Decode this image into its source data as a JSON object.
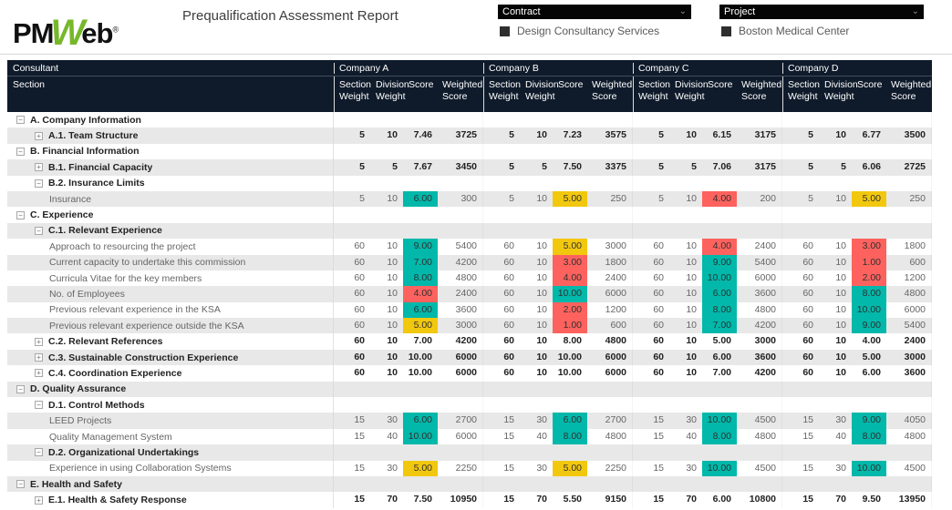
{
  "page": {
    "title_report": "Prequalification Assessment Report"
  },
  "logo": {
    "part1": "PM",
    "part2": "W",
    "part3": "eb",
    "registered": "®"
  },
  "slicers": {
    "contract": {
      "label": "Contract",
      "selected_item": "Design Consultancy Services",
      "chevron": "⌄"
    },
    "project": {
      "label": "Project",
      "selected_item": "Boston Medical Center",
      "chevron": "⌄"
    }
  },
  "table": {
    "corner_row1": "Consultant",
    "corner_row2": "Section",
    "companies": [
      "Company A",
      "Company B",
      "Company C",
      "Company D"
    ],
    "sub_columns": [
      "Section Weight",
      "Division Weight",
      "Score",
      "Weighted Score"
    ],
    "rows": [
      {
        "label": "A. Company Information",
        "level": 1,
        "expander": "minus",
        "bold": true,
        "cells": null
      },
      {
        "label": "A.1. Team Structure",
        "level": 2,
        "expander": "plus",
        "bold": true,
        "cells": [
          {
            "sw": "5",
            "dw": "10",
            "score": "7.46",
            "ws": "3725",
            "color": null
          },
          {
            "sw": "5",
            "dw": "10",
            "score": "7.23",
            "ws": "3575",
            "color": null
          },
          {
            "sw": "5",
            "dw": "10",
            "score": "6.15",
            "ws": "3175",
            "color": null
          },
          {
            "sw": "5",
            "dw": "10",
            "score": "6.77",
            "ws": "3500",
            "color": null
          }
        ]
      },
      {
        "label": "B. Financial Information",
        "level": 1,
        "expander": "minus",
        "bold": true,
        "cells": null
      },
      {
        "label": "B.1. Financial Capacity",
        "level": 2,
        "expander": "plus",
        "bold": true,
        "cells": [
          {
            "sw": "5",
            "dw": "5",
            "score": "7.67",
            "ws": "3450",
            "color": null
          },
          {
            "sw": "5",
            "dw": "5",
            "score": "7.50",
            "ws": "3375",
            "color": null
          },
          {
            "sw": "5",
            "dw": "5",
            "score": "7.06",
            "ws": "3175",
            "color": null
          },
          {
            "sw": "5",
            "dw": "5",
            "score": "6.06",
            "ws": "2725",
            "color": null
          }
        ]
      },
      {
        "label": "B.2. Insurance Limits",
        "level": 2,
        "expander": "minus",
        "bold": true,
        "cells": null
      },
      {
        "label": "Insurance",
        "level": 3,
        "expander": null,
        "bold": false,
        "cells": [
          {
            "sw": "5",
            "dw": "10",
            "score": "6.00",
            "ws": "300",
            "color": "teal"
          },
          {
            "sw": "5",
            "dw": "10",
            "score": "5.00",
            "ws": "250",
            "color": "yellow"
          },
          {
            "sw": "5",
            "dw": "10",
            "score": "4.00",
            "ws": "200",
            "color": "red"
          },
          {
            "sw": "5",
            "dw": "10",
            "score": "5.00",
            "ws": "250",
            "color": "yellow"
          }
        ]
      },
      {
        "label": "C. Experience",
        "level": 1,
        "expander": "minus",
        "bold": true,
        "cells": null
      },
      {
        "label": "C.1. Relevant Experience",
        "level": 2,
        "expander": "minus",
        "bold": true,
        "cells": null
      },
      {
        "label": "Approach to resourcing the project",
        "level": 3,
        "expander": null,
        "bold": false,
        "cells": [
          {
            "sw": "60",
            "dw": "10",
            "score": "9.00",
            "ws": "5400",
            "color": "teal"
          },
          {
            "sw": "60",
            "dw": "10",
            "score": "5.00",
            "ws": "3000",
            "color": "yellow"
          },
          {
            "sw": "60",
            "dw": "10",
            "score": "4.00",
            "ws": "2400",
            "color": "red"
          },
          {
            "sw": "60",
            "dw": "10",
            "score": "3.00",
            "ws": "1800",
            "color": "red"
          }
        ]
      },
      {
        "label": "Current capacity to undertake this commission",
        "level": 3,
        "expander": null,
        "bold": false,
        "cells": [
          {
            "sw": "60",
            "dw": "10",
            "score": "7.00",
            "ws": "4200",
            "color": "teal"
          },
          {
            "sw": "60",
            "dw": "10",
            "score": "3.00",
            "ws": "1800",
            "color": "red"
          },
          {
            "sw": "60",
            "dw": "10",
            "score": "9.00",
            "ws": "5400",
            "color": "teal"
          },
          {
            "sw": "60",
            "dw": "10",
            "score": "1.00",
            "ws": "600",
            "color": "red"
          }
        ]
      },
      {
        "label": "Curricula Vitae for the key members",
        "level": 3,
        "expander": null,
        "bold": false,
        "cells": [
          {
            "sw": "60",
            "dw": "10",
            "score": "8.00",
            "ws": "4800",
            "color": "teal"
          },
          {
            "sw": "60",
            "dw": "10",
            "score": "4.00",
            "ws": "2400",
            "color": "red"
          },
          {
            "sw": "60",
            "dw": "10",
            "score": "10.00",
            "ws": "6000",
            "color": "teal"
          },
          {
            "sw": "60",
            "dw": "10",
            "score": "2.00",
            "ws": "1200",
            "color": "red"
          }
        ]
      },
      {
        "label": "No. of Employees",
        "level": 3,
        "expander": null,
        "bold": false,
        "cells": [
          {
            "sw": "60",
            "dw": "10",
            "score": "4.00",
            "ws": "2400",
            "color": "red"
          },
          {
            "sw": "60",
            "dw": "10",
            "score": "10.00",
            "ws": "6000",
            "color": "teal"
          },
          {
            "sw": "60",
            "dw": "10",
            "score": "6.00",
            "ws": "3600",
            "color": "teal"
          },
          {
            "sw": "60",
            "dw": "10",
            "score": "8.00",
            "ws": "4800",
            "color": "teal"
          }
        ]
      },
      {
        "label": "Previous relevant experience in the KSA",
        "level": 3,
        "expander": null,
        "bold": false,
        "cells": [
          {
            "sw": "60",
            "dw": "10",
            "score": "6.00",
            "ws": "3600",
            "color": "teal"
          },
          {
            "sw": "60",
            "dw": "10",
            "score": "2.00",
            "ws": "1200",
            "color": "red"
          },
          {
            "sw": "60",
            "dw": "10",
            "score": "8.00",
            "ws": "4800",
            "color": "teal"
          },
          {
            "sw": "60",
            "dw": "10",
            "score": "10.00",
            "ws": "6000",
            "color": "teal"
          }
        ]
      },
      {
        "label": "Previous relevant experience outside the KSA",
        "level": 3,
        "expander": null,
        "bold": false,
        "cells": [
          {
            "sw": "60",
            "dw": "10",
            "score": "5.00",
            "ws": "3000",
            "color": "yellow"
          },
          {
            "sw": "60",
            "dw": "10",
            "score": "1.00",
            "ws": "600",
            "color": "red"
          },
          {
            "sw": "60",
            "dw": "10",
            "score": "7.00",
            "ws": "4200",
            "color": "teal"
          },
          {
            "sw": "60",
            "dw": "10",
            "score": "9.00",
            "ws": "5400",
            "color": "teal"
          }
        ]
      },
      {
        "label": "C.2. Relevant References",
        "level": 2,
        "expander": "plus",
        "bold": true,
        "cells": [
          {
            "sw": "60",
            "dw": "10",
            "score": "7.00",
            "ws": "4200",
            "color": null
          },
          {
            "sw": "60",
            "dw": "10",
            "score": "8.00",
            "ws": "4800",
            "color": null
          },
          {
            "sw": "60",
            "dw": "10",
            "score": "5.00",
            "ws": "3000",
            "color": null
          },
          {
            "sw": "60",
            "dw": "10",
            "score": "4.00",
            "ws": "2400",
            "color": null
          }
        ]
      },
      {
        "label": "C.3. Sustainable Construction Experience",
        "level": 2,
        "expander": "plus",
        "bold": true,
        "cells": [
          {
            "sw": "60",
            "dw": "10",
            "score": "10.00",
            "ws": "6000",
            "color": null
          },
          {
            "sw": "60",
            "dw": "10",
            "score": "10.00",
            "ws": "6000",
            "color": null
          },
          {
            "sw": "60",
            "dw": "10",
            "score": "6.00",
            "ws": "3600",
            "color": null
          },
          {
            "sw": "60",
            "dw": "10",
            "score": "5.00",
            "ws": "3000",
            "color": null
          }
        ]
      },
      {
        "label": "C.4. Coordination Experience",
        "level": 2,
        "expander": "plus",
        "bold": true,
        "cells": [
          {
            "sw": "60",
            "dw": "10",
            "score": "10.00",
            "ws": "6000",
            "color": null
          },
          {
            "sw": "60",
            "dw": "10",
            "score": "10.00",
            "ws": "6000",
            "color": null
          },
          {
            "sw": "60",
            "dw": "10",
            "score": "7.00",
            "ws": "4200",
            "color": null
          },
          {
            "sw": "60",
            "dw": "10",
            "score": "6.00",
            "ws": "3600",
            "color": null
          }
        ]
      },
      {
        "label": "D. Quality Assurance",
        "level": 1,
        "expander": "minus",
        "bold": true,
        "cells": null
      },
      {
        "label": "D.1. Control Methods",
        "level": 2,
        "expander": "minus",
        "bold": true,
        "cells": null
      },
      {
        "label": "LEED Projects",
        "level": 3,
        "expander": null,
        "bold": false,
        "cells": [
          {
            "sw": "15",
            "dw": "30",
            "score": "6.00",
            "ws": "2700",
            "color": "teal"
          },
          {
            "sw": "15",
            "dw": "30",
            "score": "6.00",
            "ws": "2700",
            "color": "teal"
          },
          {
            "sw": "15",
            "dw": "30",
            "score": "10.00",
            "ws": "4500",
            "color": "teal"
          },
          {
            "sw": "15",
            "dw": "30",
            "score": "9.00",
            "ws": "4050",
            "color": "teal"
          }
        ]
      },
      {
        "label": "Quality Management System",
        "level": 3,
        "expander": null,
        "bold": false,
        "cells": [
          {
            "sw": "15",
            "dw": "40",
            "score": "10.00",
            "ws": "6000",
            "color": "teal"
          },
          {
            "sw": "15",
            "dw": "40",
            "score": "8.00",
            "ws": "4800",
            "color": "teal"
          },
          {
            "sw": "15",
            "dw": "40",
            "score": "8.00",
            "ws": "4800",
            "color": "teal"
          },
          {
            "sw": "15",
            "dw": "40",
            "score": "8.00",
            "ws": "4800",
            "color": "teal"
          }
        ]
      },
      {
        "label": "D.2. Organizational Undertakings",
        "level": 2,
        "expander": "minus",
        "bold": true,
        "cells": null
      },
      {
        "label": "Experience in using Collaboration Systems",
        "level": 3,
        "expander": null,
        "bold": false,
        "cells": [
          {
            "sw": "15",
            "dw": "30",
            "score": "5.00",
            "ws": "2250",
            "color": "yellow"
          },
          {
            "sw": "15",
            "dw": "30",
            "score": "5.00",
            "ws": "2250",
            "color": "yellow"
          },
          {
            "sw": "15",
            "dw": "30",
            "score": "10.00",
            "ws": "4500",
            "color": "teal"
          },
          {
            "sw": "15",
            "dw": "30",
            "score": "10.00",
            "ws": "4500",
            "color": "teal"
          }
        ]
      },
      {
        "label": "E. Health and Safety",
        "level": 1,
        "expander": "minus",
        "bold": true,
        "cells": null
      },
      {
        "label": "E.1. Health & Safety Response",
        "level": 2,
        "expander": "plus",
        "bold": true,
        "cells": [
          {
            "sw": "15",
            "dw": "70",
            "score": "7.50",
            "ws": "10950",
            "color": null
          },
          {
            "sw": "15",
            "dw": "70",
            "score": "5.50",
            "ws": "9150",
            "color": null
          },
          {
            "sw": "15",
            "dw": "70",
            "score": "6.00",
            "ws": "10800",
            "color": null
          },
          {
            "sw": "15",
            "dw": "70",
            "score": "9.50",
            "ws": "13950",
            "color": null
          }
        ]
      }
    ]
  },
  "colors": {
    "header_bg": "#0F1B2B",
    "row_alt": "#E8E8E8",
    "score_teal": "#01B8AA",
    "score_yellow": "#F2C80F",
    "score_red": "#FD625E",
    "logo_green": "#76B82A"
  }
}
